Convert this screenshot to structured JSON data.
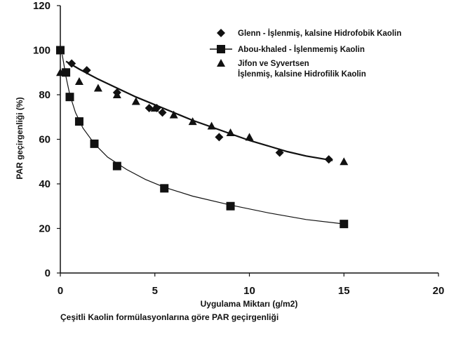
{
  "chart_data": {
    "type": "scatter",
    "xlabel": "Uygulama Miktarı (g/m2)",
    "ylabel": "PAR geçirgenliği (%)",
    "xlim": [
      0,
      20
    ],
    "ylim": [
      0,
      120
    ],
    "xticks": [
      0,
      5,
      10,
      15,
      20
    ],
    "yticks": [
      0,
      20,
      40,
      60,
      80,
      100,
      120
    ],
    "grid": false,
    "legend_position": "top-right",
    "series": [
      {
        "name": "Glenn - İşlenmiş, kalsine Hidrofobik Kaolin",
        "marker": "diamond",
        "points": [
          [
            0.6,
            94
          ],
          [
            1.4,
            91
          ],
          [
            3.0,
            81
          ],
          [
            4.7,
            74
          ],
          [
            5.1,
            74
          ],
          [
            5.4,
            72
          ],
          [
            8.4,
            61
          ],
          [
            11.6,
            54
          ],
          [
            14.2,
            51
          ]
        ],
        "fit": [
          [
            0.3,
            95
          ],
          [
            1,
            91.5
          ],
          [
            2,
            87
          ],
          [
            3,
            83
          ],
          [
            4,
            79
          ],
          [
            5,
            75.5
          ],
          [
            6,
            72
          ],
          [
            7,
            68.5
          ],
          [
            8,
            65.5
          ],
          [
            9,
            62.5
          ],
          [
            10,
            59.5
          ],
          [
            11,
            57
          ],
          [
            12,
            54.5
          ],
          [
            13,
            52.5
          ],
          [
            14.4,
            50.5
          ]
        ]
      },
      {
        "name": "Abou-khaled  - İşlenmemiş Kaolin",
        "marker": "square",
        "points": [
          [
            0,
            100
          ],
          [
            0.3,
            90
          ],
          [
            0.5,
            79
          ],
          [
            1.0,
            68
          ],
          [
            1.8,
            58
          ],
          [
            3.0,
            48
          ],
          [
            5.5,
            38
          ],
          [
            9.0,
            30
          ],
          [
            15.0,
            22
          ]
        ],
        "fit": [
          [
            0.1,
            98
          ],
          [
            0.3,
            88
          ],
          [
            0.5,
            80
          ],
          [
            0.8,
            72
          ],
          [
            1.2,
            65
          ],
          [
            1.8,
            58
          ],
          [
            2.5,
            52
          ],
          [
            3.5,
            46.5
          ],
          [
            4.5,
            42
          ],
          [
            5.5,
            38.5
          ],
          [
            7,
            34.5
          ],
          [
            9,
            30.5
          ],
          [
            11,
            27
          ],
          [
            13,
            24
          ],
          [
            15,
            22
          ]
        ]
      },
      {
        "name": "Jifon ve Syvertsen\nİşlenmiş, kalsine Hidrofilik Kaolin",
        "marker": "triangle",
        "points": [
          [
            0,
            90
          ],
          [
            0.3,
            90
          ],
          [
            1.0,
            86
          ],
          [
            2.0,
            83
          ],
          [
            3.0,
            80
          ],
          [
            4.0,
            77
          ],
          [
            5.0,
            74
          ],
          [
            6.0,
            71
          ],
          [
            7.0,
            68
          ],
          [
            8.0,
            66
          ],
          [
            9.0,
            63
          ],
          [
            10.0,
            61
          ],
          [
            15.0,
            50
          ]
        ],
        "fit": []
      }
    ]
  },
  "caption": "Çeşitli Kaolin formülasyonlarına göre PAR geçirgenliği"
}
